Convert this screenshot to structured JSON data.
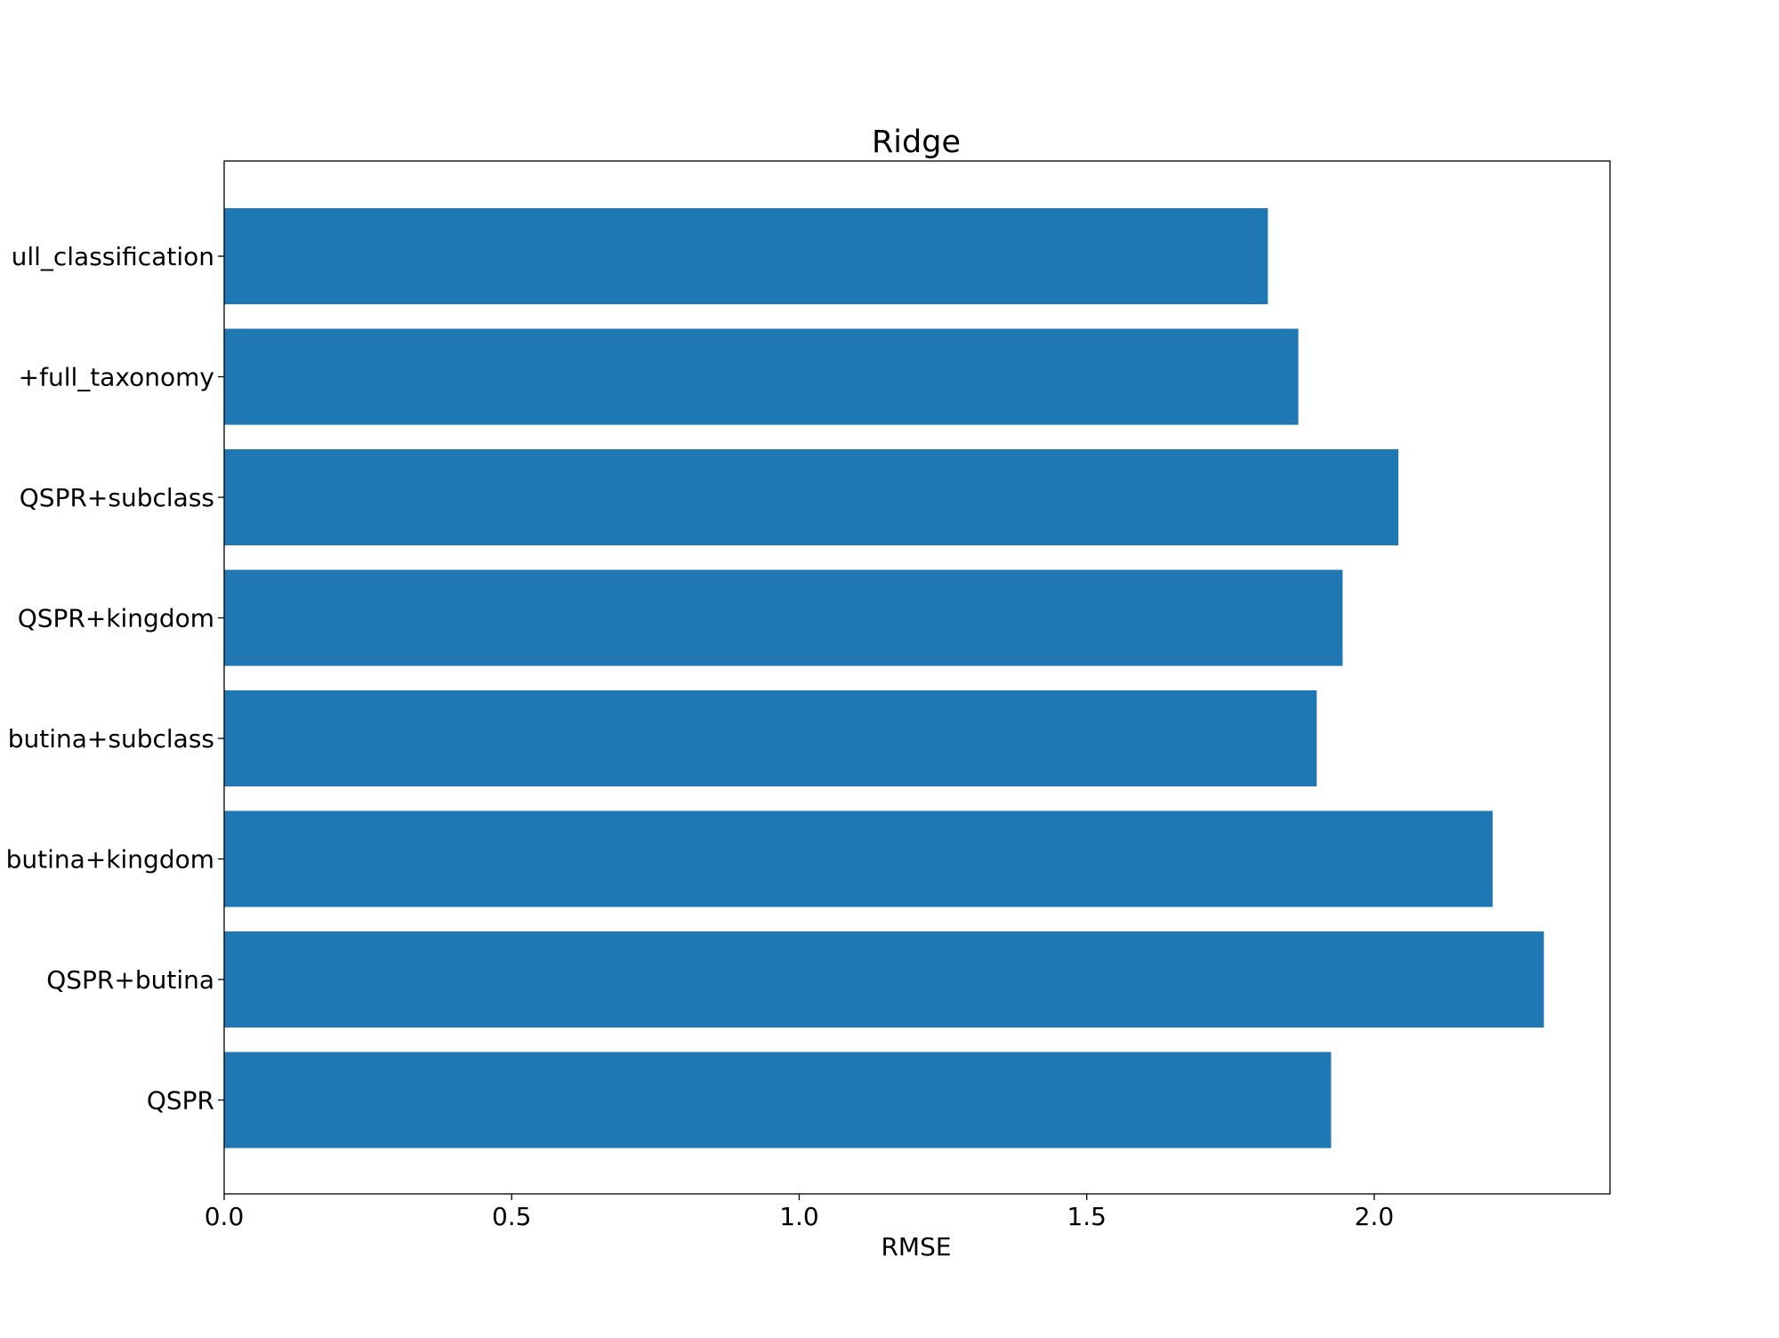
{
  "chart_data": {
    "type": "bar",
    "orientation": "horizontal",
    "title": "Ridge",
    "xlabel": "RMSE",
    "ylabel": "",
    "xlim": [
      0,
      2.41
    ],
    "xticks": [
      0.0,
      0.5,
      1.0,
      1.5,
      2.0
    ],
    "xtick_labels": [
      "0.0",
      "0.5",
      "1.0",
      "1.5",
      "2.0"
    ],
    "grid": false,
    "bar_color": "#1f77b4",
    "categories": [
      "ull_classification",
      "+full_taxonomy",
      "QSPR+subclass",
      "QSPR+kingdom",
      "butina+subclass",
      "butina+kingdom",
      "QSPR+butina",
      "QSPR"
    ],
    "values": [
      1.815,
      1.868,
      2.042,
      1.945,
      1.9,
      2.206,
      2.295,
      1.925
    ]
  }
}
